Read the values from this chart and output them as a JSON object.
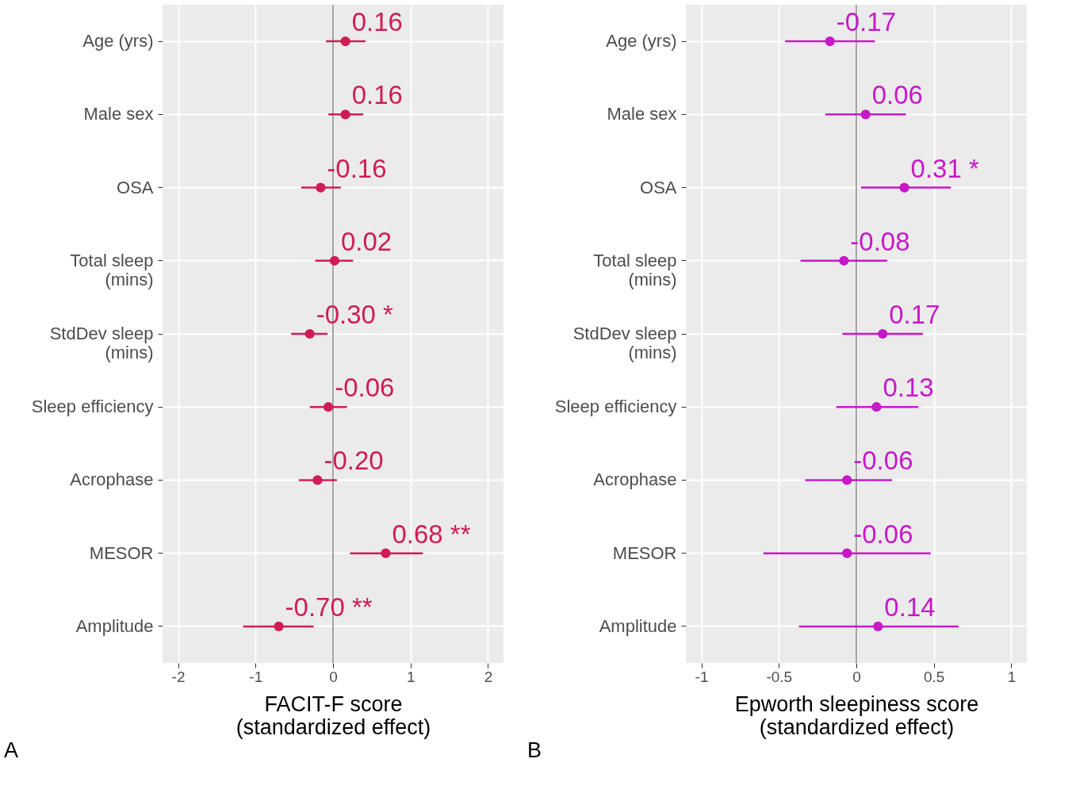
{
  "chart_data": [
    {
      "type": "scatter",
      "orientation": "horizontal",
      "xlabel": "FACIT-F score\n(standardized effect)",
      "categories": [
        "Age (yrs)",
        "Male sex",
        "OSA",
        "Total sleep\n(mins)",
        "StdDev sleep\n(mins)",
        "Sleep efficiency",
        "Acrophase",
        "MESOR",
        "Amplitude"
      ],
      "series": [
        {
          "color": "#d01c55",
          "values": [
            0.16,
            0.16,
            -0.16,
            0.02,
            -0.3,
            -0.06,
            -0.2,
            0.68,
            -0.7
          ],
          "errors": [
            [
              -0.09,
              0.42
            ],
            [
              -0.06,
              0.39
            ],
            [
              -0.41,
              0.1
            ],
            [
              -0.23,
              0.26
            ],
            [
              -0.54,
              -0.07
            ],
            [
              -0.3,
              0.18
            ],
            [
              -0.44,
              0.05
            ],
            [
              0.22,
              1.16
            ],
            [
              -1.16,
              -0.25
            ]
          ],
          "value_labels": [
            "0.16",
            "0.16",
            "-0.16",
            "0.02",
            "-0.30 *",
            "-0.06",
            "-0.20",
            "0.68 **",
            "-0.70 **"
          ]
        }
      ],
      "xlim": [
        -2.2,
        2.2
      ],
      "xticks": [
        -2,
        -1,
        0,
        1,
        2
      ],
      "grid": true,
      "marker": "circle",
      "ref_lines": [
        {
          "axis": "x",
          "value": 0,
          "color": "#4d4d4d"
        }
      ],
      "annotations": [
        "A"
      ]
    },
    {
      "type": "scatter",
      "orientation": "horizontal",
      "xlabel": "Epworth sleepiness score\n(standardized effect)",
      "categories": [
        "Age (yrs)",
        "Male sex",
        "OSA",
        "Total sleep\n(mins)",
        "StdDev sleep\n(mins)",
        "Sleep efficiency",
        "Acrophase",
        "MESOR",
        "Amplitude"
      ],
      "series": [
        {
          "color": "#c718c7",
          "values": [
            -0.17,
            0.06,
            0.31,
            -0.08,
            0.17,
            0.13,
            -0.06,
            -0.06,
            0.14
          ],
          "errors": [
            [
              -0.46,
              0.12
            ],
            [
              -0.2,
              0.32
            ],
            [
              0.03,
              0.61
            ],
            [
              -0.36,
              0.2
            ],
            [
              -0.09,
              0.43
            ],
            [
              -0.13,
              0.4
            ],
            [
              -0.33,
              0.23
            ],
            [
              -0.6,
              0.48
            ],
            [
              -0.37,
              0.66
            ]
          ],
          "value_labels": [
            "-0.17",
            "0.06",
            "0.31 *",
            "-0.08",
            "0.17",
            "0.13",
            "-0.06",
            "-0.06",
            "0.14"
          ]
        }
      ],
      "xlim": [
        -1.1,
        1.1
      ],
      "xticks": [
        -1,
        -0.5,
        0,
        0.5,
        1
      ],
      "grid": true,
      "marker": "circle",
      "ref_lines": [
        {
          "axis": "x",
          "value": 0,
          "color": "#4d4d4d"
        }
      ],
      "annotations": [
        "B"
      ]
    }
  ]
}
